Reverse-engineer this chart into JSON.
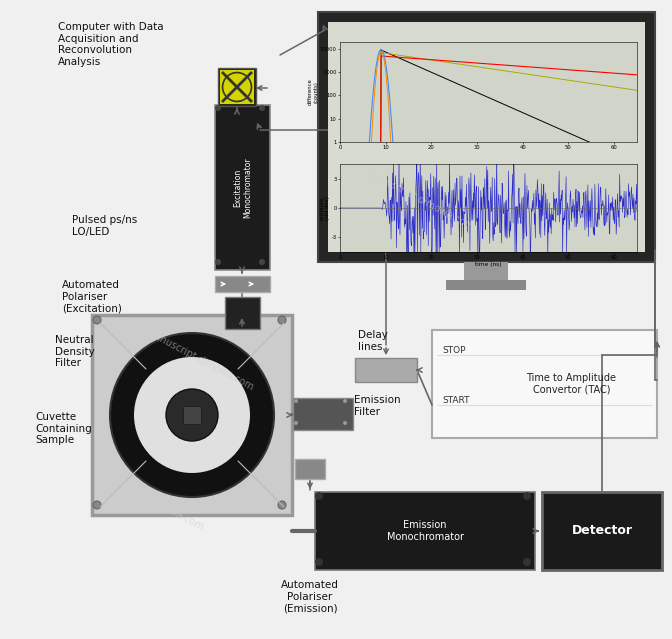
{
  "bg_color": "#f0f0f0",
  "labels": {
    "computer": "Computer with Data\nAcquisition and\nReconvolution\nAnalysis",
    "pulsed": "Pulsed ps/ns\nLO/LED",
    "excitation_mono": "Excitation\nMonochromator",
    "auto_pol_exc": "Automated\nPolariser\n(Excitation)",
    "neutral": "Neutral\nDensity\nFilter",
    "cuvette": "Cuvette\nContaining\nSample",
    "emission_filter": "Emission\nFilter",
    "delay": "Delay\nlines",
    "tac": "Time to Amplitude\nConvertor (TAC)",
    "stop": "STOP",
    "start": "START",
    "emission_mono": "Emission\nMonochromator",
    "detector": "Detector",
    "auto_pol_em": "Automated\nPolariser\n(Emission)"
  },
  "monitor_dark": "#252525",
  "monitor_screen": "#b8c0b0",
  "box_dark": "#1a1a1a",
  "box_mid": "#555555",
  "tac_bg": "#f8f8f8",
  "wire_color": "#666666",
  "line_color": "#888888"
}
